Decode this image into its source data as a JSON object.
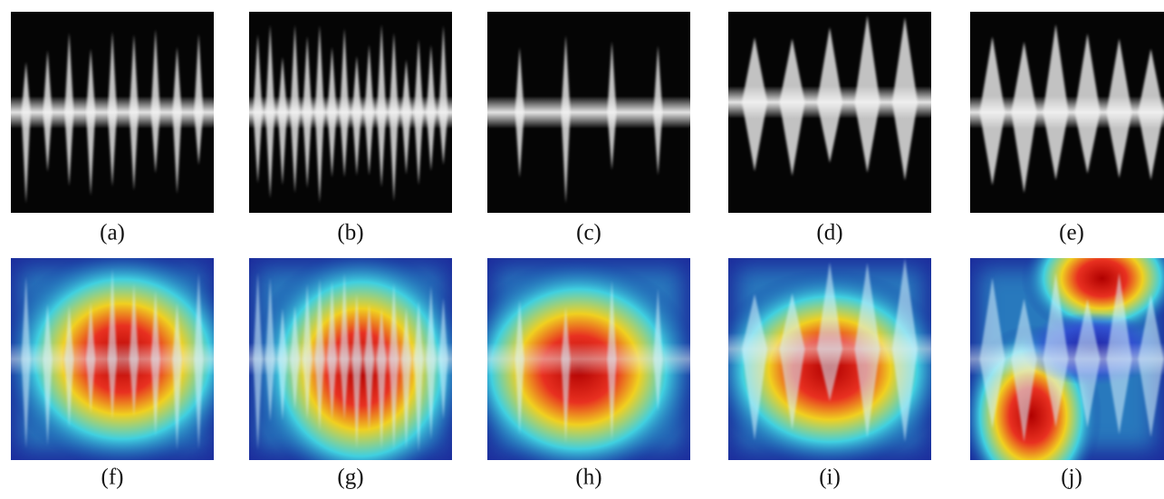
{
  "panels": [
    {
      "label": "(a)"
    },
    {
      "label": "(b)"
    },
    {
      "label": "(c)"
    },
    {
      "label": "(d)"
    },
    {
      "label": "(e)"
    },
    {
      "label": "(f)"
    },
    {
      "label": "(g)"
    },
    {
      "label": "(h)"
    },
    {
      "label": "(i)"
    },
    {
      "label": "(j)"
    }
  ]
}
